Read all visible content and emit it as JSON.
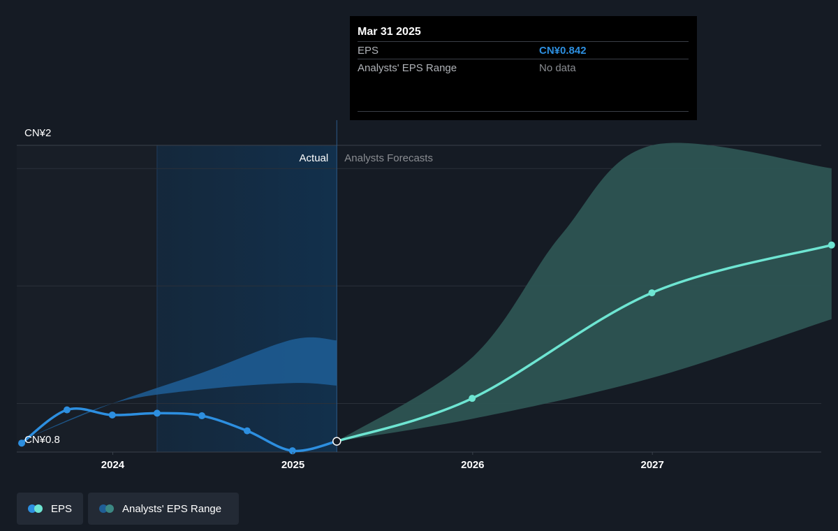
{
  "colors": {
    "background": "#151b24",
    "eps_actual": "#2d8fe0",
    "eps_forecast": "#6ee5d2",
    "actual_range_fill": "#1f5e96",
    "forecast_range_fill": "#2d5453",
    "grid": "#2b313a",
    "past_shade": "#12304c"
  },
  "tooltip": {
    "date": "Mar 31 2025",
    "rows": [
      {
        "label": "EPS",
        "value": "CN¥0.842"
      },
      {
        "label": "Analysts' EPS Range",
        "value": "No data"
      }
    ]
  },
  "legend": {
    "eps": {
      "label": "EPS",
      "icon": "two-dot-icon"
    },
    "range": {
      "label": "Analysts' EPS Range",
      "icon": "two-dot-icon"
    }
  },
  "chart_data": {
    "type": "line",
    "title": "",
    "xlabel": "",
    "ylabel": "",
    "xlim": [
      "2023-06-20",
      "2027-12-10"
    ],
    "ylim": [
      0.8,
      2.0
    ],
    "y_ticks": [
      {
        "value": 2.0,
        "label": "CN¥2"
      },
      {
        "value": 0.8,
        "label": "CN¥0.8"
      }
    ],
    "y_gridlines": [
      2.0,
      1.909,
      1.45,
      0.99
    ],
    "x_ticks": [
      {
        "date": "2024-01-01",
        "label": "2024"
      },
      {
        "date": "2025-01-01",
        "label": "2025"
      },
      {
        "date": "2026-01-01",
        "label": "2026"
      },
      {
        "date": "2027-01-01",
        "label": "2027"
      }
    ],
    "region_labels": {
      "actual": "Actual",
      "forecast": "Analysts Forecasts"
    },
    "divider_date": "2025-03-31",
    "past_shade_start": "2024-03-31",
    "series": [
      {
        "name": "EPS",
        "kind": "actual",
        "points": [
          {
            "date": "2023-06-30",
            "value": 0.835
          },
          {
            "date": "2023-09-30",
            "value": 0.965
          },
          {
            "date": "2023-12-31",
            "value": 0.945
          },
          {
            "date": "2024-03-31",
            "value": 0.952
          },
          {
            "date": "2024-06-30",
            "value": 0.942
          },
          {
            "date": "2024-09-30",
            "value": 0.883
          },
          {
            "date": "2024-12-31",
            "value": 0.805
          },
          {
            "date": "2025-03-31",
            "value": 0.842
          }
        ]
      },
      {
        "name": "EPS",
        "kind": "forecast",
        "points": [
          {
            "date": "2025-03-31",
            "value": 0.842
          },
          {
            "date": "2025-12-31",
            "value": 1.01
          },
          {
            "date": "2026-12-31",
            "value": 1.423
          },
          {
            "date": "2027-12-31",
            "value": 1.61
          }
        ]
      }
    ],
    "ranges": [
      {
        "name": "Analysts' EPS Range",
        "kind": "actual",
        "upper": [
          {
            "date": "2023-06-30",
            "value": 0.845
          },
          {
            "date": "2023-12-31",
            "value": 0.99
          },
          {
            "date": "2024-06-30",
            "value": 1.11
          },
          {
            "date": "2024-12-31",
            "value": 1.24
          },
          {
            "date": "2025-03-31",
            "value": 1.237
          }
        ],
        "lower": [
          {
            "date": "2023-06-30",
            "value": 0.845
          },
          {
            "date": "2023-12-31",
            "value": 0.99
          },
          {
            "date": "2024-06-30",
            "value": 1.045
          },
          {
            "date": "2024-12-31",
            "value": 1.07
          },
          {
            "date": "2025-03-31",
            "value": 1.06
          }
        ]
      },
      {
        "name": "Analysts' EPS Range",
        "kind": "forecast",
        "upper": [
          {
            "date": "2025-03-31",
            "value": 0.842
          },
          {
            "date": "2025-12-31",
            "value": 1.17
          },
          {
            "date": "2026-06-30",
            "value": 1.65
          },
          {
            "date": "2026-12-31",
            "value": 2.0
          },
          {
            "date": "2027-12-31",
            "value": 1.91
          }
        ],
        "lower": [
          {
            "date": "2025-03-31",
            "value": 0.842
          },
          {
            "date": "2025-12-31",
            "value": 0.93
          },
          {
            "date": "2026-12-31",
            "value": 1.09
          },
          {
            "date": "2027-12-31",
            "value": 1.32
          }
        ]
      }
    ]
  }
}
